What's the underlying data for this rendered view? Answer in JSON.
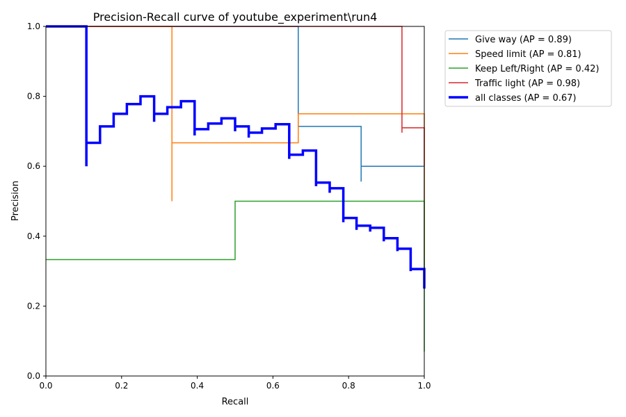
{
  "chart_data": {
    "type": "line",
    "title": "Precision-Recall curve of youtube_experiment\\run4",
    "xlabel": "Recall",
    "ylabel": "Precision",
    "xlim": [
      0,
      1
    ],
    "ylim": [
      0,
      1
    ],
    "xticks": [
      "0.0",
      "0.2",
      "0.4",
      "0.6",
      "0.8",
      "1.0"
    ],
    "yticks": [
      "0.0",
      "0.2",
      "0.4",
      "0.6",
      "0.8",
      "1.0"
    ],
    "grid": false,
    "legend_position": "outside top-right",
    "series": [
      {
        "name": "Give way (AP = 0.89)",
        "color": "#1f77b4",
        "x": [
          0,
          0.667,
          0.667,
          0.833,
          0.833,
          0.833,
          1.0,
          1.0
        ],
        "y": [
          1.0,
          1.0,
          0.714,
          0.714,
          0.556,
          0.6,
          0.6,
          0.25
        ]
      },
      {
        "name": "Speed limit (AP = 0.81)",
        "color": "#ff7f0e",
        "x": [
          0,
          0.333,
          0.333,
          0.333,
          0.667,
          0.667,
          1.0,
          1.0
        ],
        "y": [
          1.0,
          1.0,
          0.5,
          0.667,
          0.667,
          0.75,
          0.75,
          0.25
        ]
      },
      {
        "name": "Keep Left/Right (AP = 0.42)",
        "color": "#2ca02c",
        "x": [
          0,
          0.5,
          0.5,
          1.0,
          1.0
        ],
        "y": [
          0.333,
          0.333,
          0.5,
          0.5,
          0.07
        ]
      },
      {
        "name": "Traffic light (AP = 0.98)",
        "color": "#d62728",
        "x": [
          0,
          0.941,
          0.941,
          0.941,
          1.0,
          1.0
        ],
        "y": [
          1.0,
          1.0,
          0.696,
          0.71,
          0.71,
          0.6
        ]
      },
      {
        "name": "all classes (AP = 0.67)",
        "color": "#0000ff",
        "bold": true,
        "x": [
          0,
          0.107,
          0.107,
          0.107,
          0.143,
          0.143,
          0.179,
          0.179,
          0.214,
          0.214,
          0.25,
          0.25,
          0.286,
          0.286,
          0.286,
          0.321,
          0.321,
          0.357,
          0.357,
          0.393,
          0.393,
          0.393,
          0.429,
          0.429,
          0.464,
          0.464,
          0.5,
          0.5,
          0.5,
          0.536,
          0.536,
          0.536,
          0.571,
          0.571,
          0.607,
          0.607,
          0.643,
          0.643,
          0.643,
          0.679,
          0.679,
          0.714,
          0.714,
          0.714,
          0.75,
          0.75,
          0.75,
          0.786,
          0.786,
          0.786,
          0.821,
          0.821,
          0.821,
          0.857,
          0.857,
          0.857,
          0.893,
          0.893,
          0.893,
          0.929,
          0.929,
          0.929,
          0.964,
          0.964,
          0.964,
          1.0,
          1.0
        ],
        "y": [
          1.0,
          1.0,
          0.6,
          0.667,
          0.667,
          0.714,
          0.714,
          0.75,
          0.75,
          0.778,
          0.778,
          0.8,
          0.8,
          0.727,
          0.75,
          0.75,
          0.769,
          0.769,
          0.786,
          0.786,
          0.688,
          0.706,
          0.706,
          0.722,
          0.722,
          0.737,
          0.737,
          0.7,
          0.714,
          0.714,
          0.682,
          0.696,
          0.696,
          0.708,
          0.708,
          0.72,
          0.72,
          0.621,
          0.633,
          0.633,
          0.645,
          0.645,
          0.543,
          0.553,
          0.553,
          0.524,
          0.537,
          0.537,
          0.44,
          0.452,
          0.452,
          0.418,
          0.43,
          0.43,
          0.413,
          0.424,
          0.424,
          0.385,
          0.394,
          0.394,
          0.357,
          0.364,
          0.364,
          0.3,
          0.306,
          0.306,
          0.25
        ]
      }
    ]
  }
}
